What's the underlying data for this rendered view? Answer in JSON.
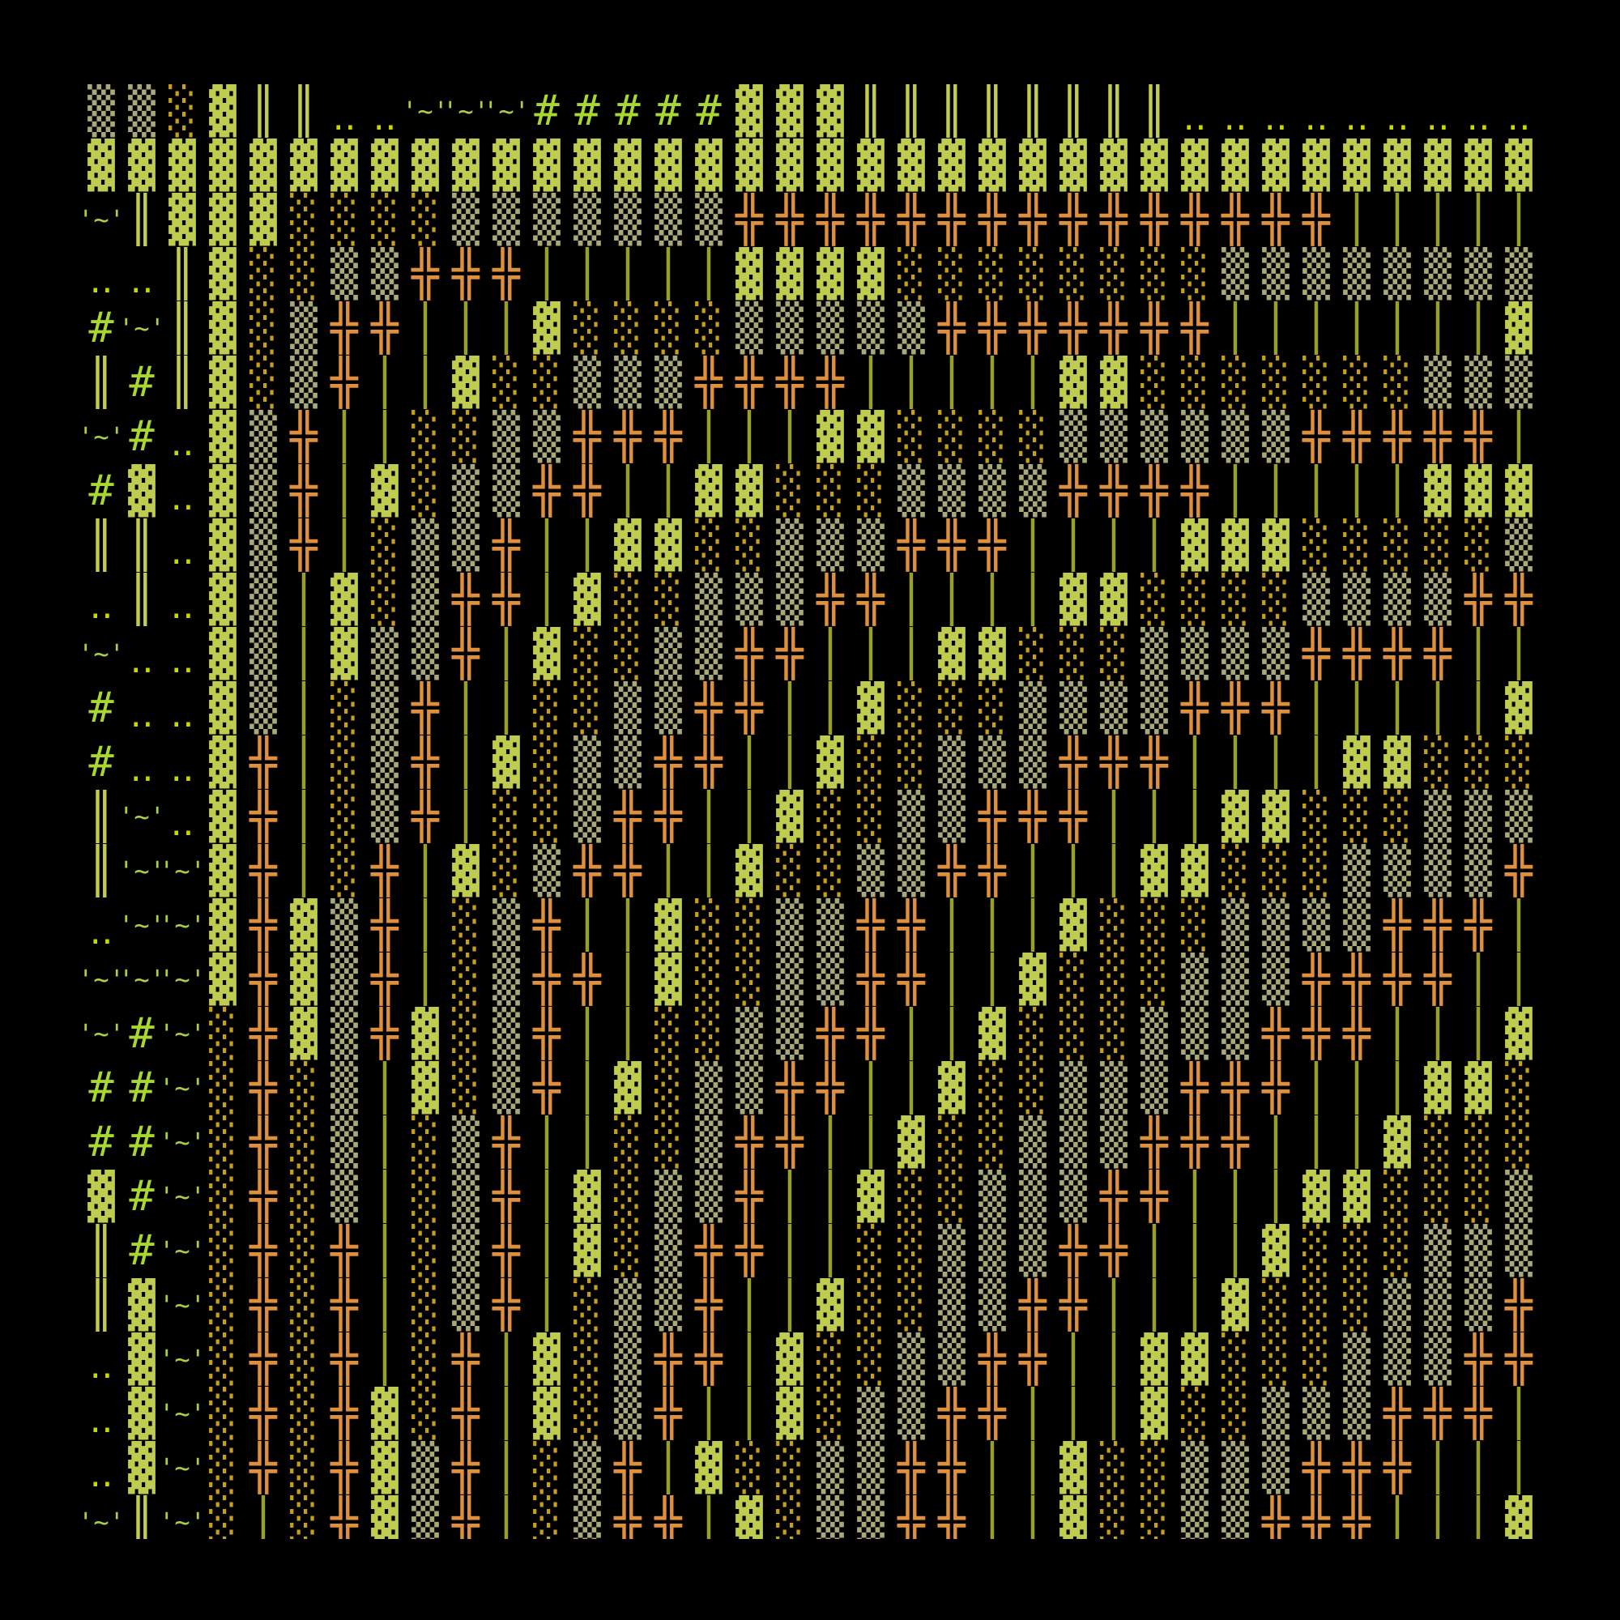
{
  "glyphs": {
    "L": "░",
    "M": "▒",
    "D": "▓",
    "H": "║",
    "X": "╬",
    "I": "│",
    "T": "'~'",
    "P": "#",
    "O": "‥",
    "_": " "
  },
  "glyph_names": {
    "L": "light-shade",
    "M": "medium-shade",
    "D": "dark-shade",
    "H": "double-bar",
    "X": "double-cross",
    "I": "single-bar",
    "T": "tilde",
    "P": "hash",
    "O": "two-dots",
    "_": "blank"
  },
  "colors": {
    "background": "#000000",
    "light_shade": "#c8a018",
    "medium_shade": "#a8a878",
    "dark_shade": "#c0cc50",
    "double_bar": "#c4cc50",
    "double_cross": "#e0903c",
    "single_bar": "#9aa020",
    "tilde": "#a8d040",
    "hash": "#a8d830",
    "dots": "#c8d800"
  },
  "rows": [
    "MMLDHHOOTTTPPPPPDDDHHHHHHHHOOOOOOOOO",
    "DDDDDDDDDDDDDDDDDDDDDDDDDDDDDDDDDDDD",
    "THDDDLLLLMMMMMMMXXXXXXXXXXXXXXXIIIII",
    "OOHDLLMMXXXIIIIIDDDDLLLLLLLLMMMMMMMM",
    "PTHDLMXXIIIDLLLLMMMMMXXXXXXXIIIIIIID",
    "HPHDLMXIIDLLMMMXXXXIIIIIDDLLLLLLLMMM",
    "TPODMXIILLMMXXXIIIDDLLLLMMMMMMXXXXXI",
    "PDODMXIDLMMXXIIDDLLLMMMMXXXXIIIIIDDD",
    "HHODMXILMMXIIDDLLMMMXXXIIIIDDDLLLLLM",
    "OHODMIDLMXXIDLLMMMXXIIIIDDLLLLMMMMXX",
    "TOODMIDMMXIDLLMMXXIIIDDLLLMMMMXXXXII",
    "POODMILMXIILLMMXXIIDLLLMMMMXXXIIIIID",
    "POODXILMXIDLMMXXIIDLLMMMXXXIIIIDDLLL",
    "HTODXILMXILLMXXIIDLLMMXXXIIIDDLLLMMM",
    "HTTDXILXIDLMXXIIDLLMMXXIIIDDLLLMMMMX",
    "OTTDXDMXILMXIIDLLMMXXIIIDLLLMMMMXXXI",
    "TTTDXDMXILMXXIDLLMMXXIIDLLLMMMXXXXII",
    "TPTLXDMXDLMXIILLMMXXIIDLLLMMMXXXIIID",
    "PPTLXLMIDLMXIDLMMXXIIDLLMMMXXXIIIDDL",
    "PPTLXLMILMXIILLMXXIIDLLMMMXXXIIIDLLL",
    "DPTLXLMILMXIDLMMXIIDLLMMMXXIIIDDLLLM",
    "HPTLXLXILMXIDLMXXIILLMMMXXIIIDLLLMMM",
    "HDTLXLXILMXILMMXIIDLLMMXXIIIDLLLMMMX",
    "ODTLXLXILXIDLMXXIDLLMMXXIIDDLLLMMMXX",
    "ODTLXLXDLXIDLMXIIDLMMXXIIIDLLMMMXXXI",
    "ODTLXLXDMXILMXIDLLMMXXIIDLLMMMXXXIII",
    "THTLILXDMXILMXXIDLMMXXIIDLLMMXXXIIID"
  ]
}
